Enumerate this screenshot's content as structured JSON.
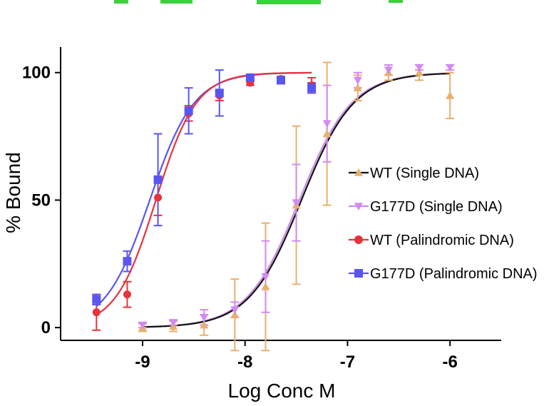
{
  "chart_data": {
    "type": "scatter",
    "title": "",
    "xlabel": "Log Conc M",
    "ylabel": "% Bound",
    "xlim": [
      -9.8,
      -5.5
    ],
    "ylim": [
      -5,
      110
    ],
    "xticks": [
      -9,
      -8,
      -7,
      -6
    ],
    "xtick_labels": [
      "-9",
      "-8",
      "-7",
      "-6"
    ],
    "yticks": [
      0,
      50,
      100
    ],
    "ytick_labels": [
      "0",
      "50",
      "100"
    ],
    "legend_position": "right",
    "series": [
      {
        "name": "WT (Single DNA)",
        "color": "#e8b06e",
        "marker": "triangle-up",
        "fit_color": "#111111",
        "fit": {
          "bottom": 0,
          "top": 100,
          "logEC50": -7.45,
          "hill": 1.7
        },
        "fit_range": [
          -9.0,
          -6.0
        ],
        "points": [
          {
            "x": -9.0,
            "y": 0,
            "err": 1.5
          },
          {
            "x": -8.7,
            "y": 0.5,
            "err": 2
          },
          {
            "x": -8.4,
            "y": 1,
            "err": 4
          },
          {
            "x": -8.1,
            "y": 5,
            "err": 14
          },
          {
            "x": -7.8,
            "y": 16,
            "err": 25
          },
          {
            "x": -7.5,
            "y": 48,
            "err": 31
          },
          {
            "x": -7.2,
            "y": 76,
            "err": 28
          },
          {
            "x": -6.9,
            "y": 94,
            "err": 5
          },
          {
            "x": -6.6,
            "y": 100,
            "err": 3
          },
          {
            "x": -6.3,
            "y": 100,
            "err": 3
          },
          {
            "x": -6.0,
            "y": 91,
            "err": 9
          }
        ]
      },
      {
        "name": "G177D (Single DNA)",
        "color": "#d28af0",
        "marker": "triangle-down",
        "fit_color": "#c88ee6",
        "fit": {
          "bottom": 0,
          "top": 100,
          "logEC50": -7.47,
          "hill": 1.7
        },
        "fit_range": [
          -9.0,
          -6.0
        ],
        "points": [
          {
            "x": -9.0,
            "y": 1,
            "err": 1
          },
          {
            "x": -8.7,
            "y": 2,
            "err": 1
          },
          {
            "x": -8.4,
            "y": 4,
            "err": 3
          },
          {
            "x": -8.1,
            "y": 7,
            "err": 3
          },
          {
            "x": -7.8,
            "y": 20,
            "err": 14
          },
          {
            "x": -7.5,
            "y": 49,
            "err": 15
          },
          {
            "x": -7.2,
            "y": 80,
            "err": 15
          },
          {
            "x": -6.9,
            "y": 97,
            "err": 3
          },
          {
            "x": -6.6,
            "y": 101,
            "err": 2
          },
          {
            "x": -6.3,
            "y": 102,
            "err": 1
          },
          {
            "x": -6.0,
            "y": 102,
            "err": 1
          }
        ]
      },
      {
        "name": "WT (Palindromic DNA)",
        "color": "#e8323c",
        "marker": "circle",
        "fit_color": "#e8323c",
        "fit": {
          "bottom": 0,
          "top": 100,
          "logEC50": -8.87,
          "hill": 2.2
        },
        "fit_range": [
          -9.45,
          -7.35
        ],
        "points": [
          {
            "x": -9.45,
            "y": 6,
            "err": 7
          },
          {
            "x": -9.15,
            "y": 13,
            "err": 5
          },
          {
            "x": -8.85,
            "y": 51,
            "err": 7
          },
          {
            "x": -8.55,
            "y": 84,
            "err": 3
          },
          {
            "x": -8.25,
            "y": 91,
            "err": 2
          },
          {
            "x": -7.95,
            "y": 96,
            "err": 1
          },
          {
            "x": -7.65,
            "y": 97.5,
            "err": 1
          },
          {
            "x": -7.35,
            "y": 95,
            "err": 3
          }
        ]
      },
      {
        "name": "G177D (Palindromic DNA)",
        "color": "#5b55f0",
        "marker": "square",
        "fit_color": "#5b55f0",
        "fit": {
          "bottom": 0,
          "top": 100,
          "logEC50": -8.93,
          "hill": 2.0
        },
        "fit_range": [
          -9.45,
          -7.35
        ],
        "points": [
          {
            "x": -9.45,
            "y": 11,
            "err": 2
          },
          {
            "x": -9.15,
            "y": 26,
            "err": 4
          },
          {
            "x": -8.85,
            "y": 58,
            "err": 18
          },
          {
            "x": -8.55,
            "y": 85,
            "err": 9
          },
          {
            "x": -8.25,
            "y": 92,
            "err": 9
          },
          {
            "x": -7.95,
            "y": 98,
            "err": 1
          },
          {
            "x": -7.65,
            "y": 97,
            "err": 1
          },
          {
            "x": -7.35,
            "y": 94,
            "err": 2
          }
        ]
      }
    ]
  }
}
